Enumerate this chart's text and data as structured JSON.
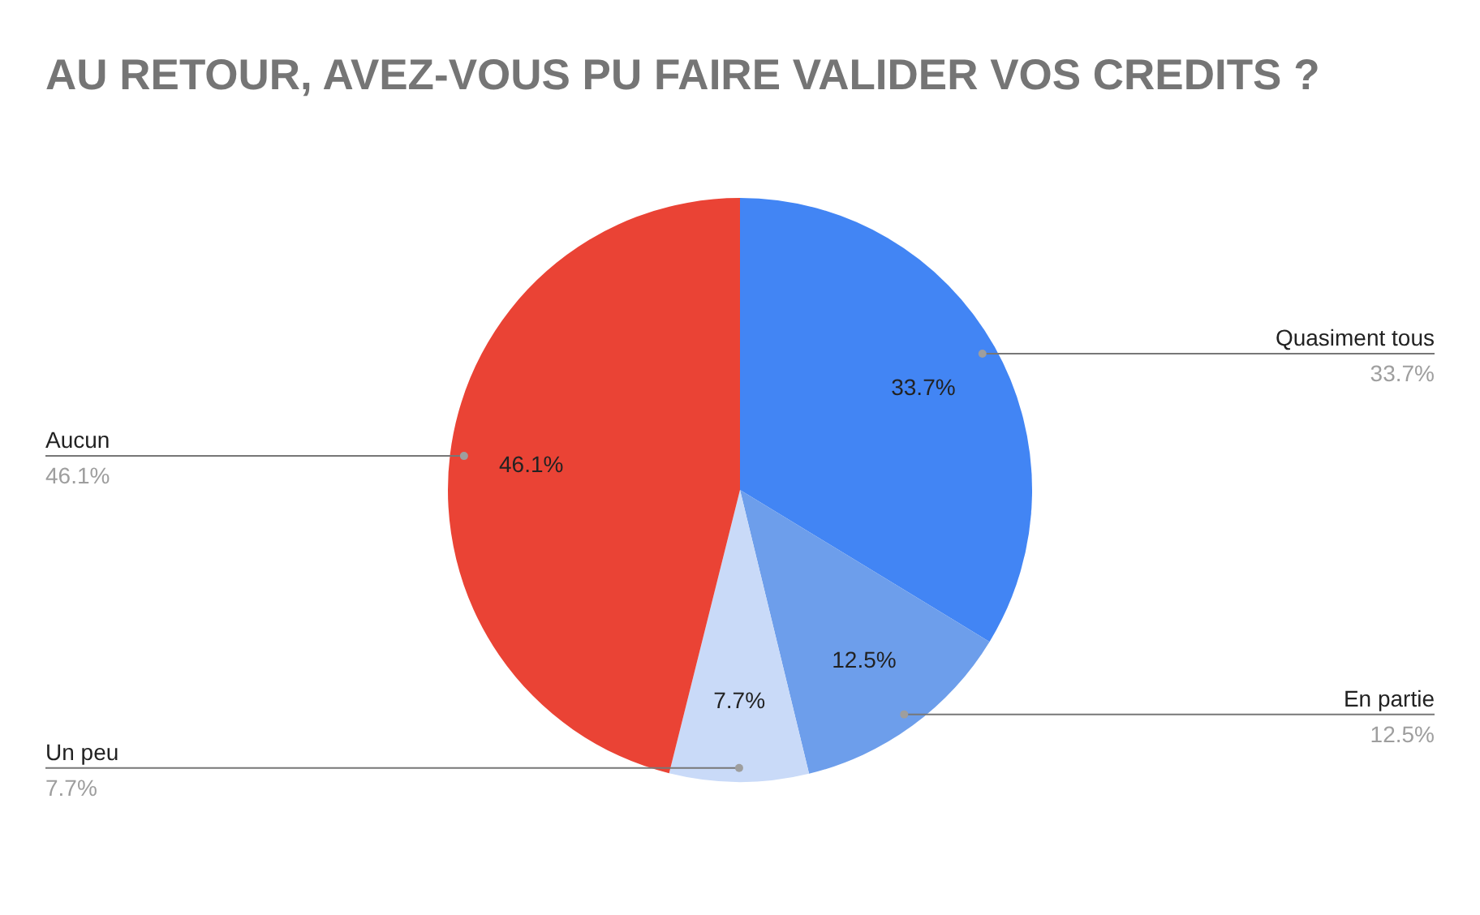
{
  "chart_data": {
    "type": "pie",
    "title": "AU RETOUR, AVEZ-VOUS PU FAIRE VALIDER VOS CREDITS ?",
    "categories": [
      "Quasiment tous",
      "En partie",
      "Un peu",
      "Aucun"
    ],
    "values": [
      33.7,
      12.5,
      7.7,
      46.1
    ],
    "colors": [
      "#4285f4",
      "#6d9eeb",
      "#c9daf8",
      "#ea4335"
    ],
    "value_labels": [
      "33.7%",
      "12.5%",
      "7.7%",
      "46.1%"
    ]
  }
}
